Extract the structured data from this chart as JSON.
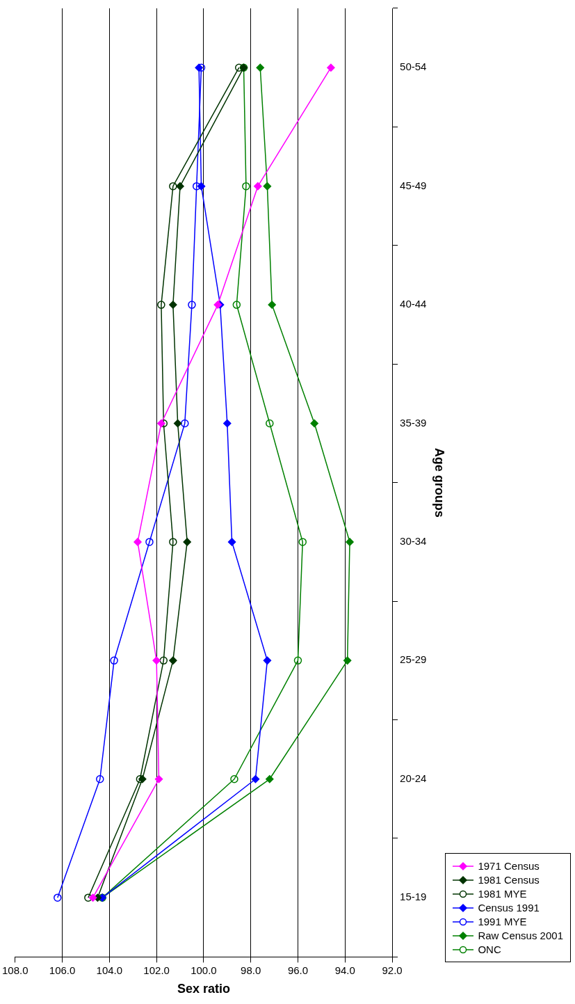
{
  "chart_data": {
    "type": "line",
    "orientation": "horizontal",
    "xlabel": "Sex ratio",
    "ylabel": "Age groups",
    "categories": [
      "50-54",
      "45-49",
      "40-44",
      "35-39",
      "30-34",
      "25-29",
      "20-24",
      "15-19"
    ],
    "xlim": [
      108,
      92
    ],
    "xticks": [
      {
        "value": 108,
        "label": "108.0"
      },
      {
        "value": 106,
        "label": "106.0"
      },
      {
        "value": 104,
        "label": "104.0"
      },
      {
        "value": 102,
        "label": "102.0"
      },
      {
        "value": 100,
        "label": "100.0"
      },
      {
        "value": 98,
        "label": "98.0"
      },
      {
        "value": 96,
        "label": "96.0"
      },
      {
        "value": 94,
        "label": "94.0"
      },
      {
        "value": 92,
        "label": "92.0"
      }
    ],
    "grid": "x",
    "legend": "bottom right",
    "series": [
      {
        "name": "1971 Census",
        "color": "#ff00ff",
        "marker": "diamond",
        "values": [
          94.6,
          97.7,
          99.4,
          101.8,
          102.8,
          102.0,
          101.9,
          104.7
        ]
      },
      {
        "name": "1981 Census",
        "color": "#003300",
        "marker": "diamond",
        "values": [
          98.3,
          101.0,
          101.3,
          101.1,
          100.7,
          101.3,
          102.6,
          104.5
        ]
      },
      {
        "name": "1981 MYE",
        "color": "#003300",
        "marker": "circle",
        "values": [
          98.5,
          101.3,
          101.8,
          101.7,
          101.3,
          101.7,
          102.7,
          104.9
        ]
      },
      {
        "name": "Census 1991",
        "color": "#0000ff",
        "marker": "diamond",
        "values": [
          100.2,
          100.1,
          99.3,
          99.0,
          98.8,
          97.3,
          97.8,
          104.3
        ]
      },
      {
        "name": "1991 MYE",
        "color": "#0000ff",
        "marker": "circle",
        "values": [
          100.1,
          100.3,
          100.5,
          100.8,
          102.3,
          103.8,
          104.4,
          106.2
        ]
      },
      {
        "name": "Raw Census 2001",
        "color": "#008000",
        "marker": "diamond",
        "values": [
          97.6,
          97.3,
          97.1,
          95.3,
          93.8,
          93.9,
          97.2,
          104.3
        ]
      },
      {
        "name": "ONC",
        "color": "#008000",
        "marker": "circle",
        "values": [
          98.3,
          98.2,
          98.6,
          97.2,
          95.8,
          96.0,
          98.7,
          104.3
        ]
      }
    ]
  }
}
